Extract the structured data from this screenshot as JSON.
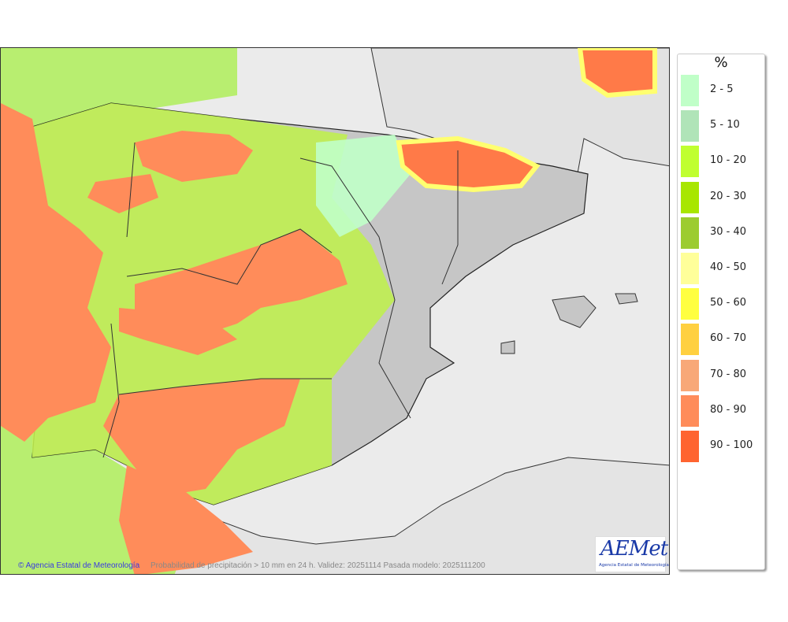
{
  "map": {
    "credit": "© Agencia Estatal de Meteorología",
    "caption": "Probabilidad de precipitación > 10 mm en 24 h. Validez: 20251114 Pasada modelo: 2025111200",
    "logo": {
      "wordmark": "AEMet",
      "subtitle": "Agencia Estatal de Meteorología"
    }
  },
  "legend": {
    "title": "%",
    "items": [
      {
        "label": "2 - 5",
        "color": "#c0ffc8"
      },
      {
        "label": "5 - 10",
        "color": "#b0e4b8"
      },
      {
        "label": "10 - 20",
        "color": "#c0ff30"
      },
      {
        "label": "20 - 30",
        "color": "#a8e600"
      },
      {
        "label": "30 - 40",
        "color": "#9ccc30"
      },
      {
        "label": "40 - 50",
        "color": "#ffff9a"
      },
      {
        "label": "50 - 60",
        "color": "#ffff40"
      },
      {
        "label": "60 - 70",
        "color": "#ffd040"
      },
      {
        "label": "70 - 80",
        "color": "#f8a878"
      },
      {
        "label": "80 - 90",
        "color": "#ff8c5a"
      },
      {
        "label": "90 - 100",
        "color": "#ff6430"
      }
    ]
  }
}
